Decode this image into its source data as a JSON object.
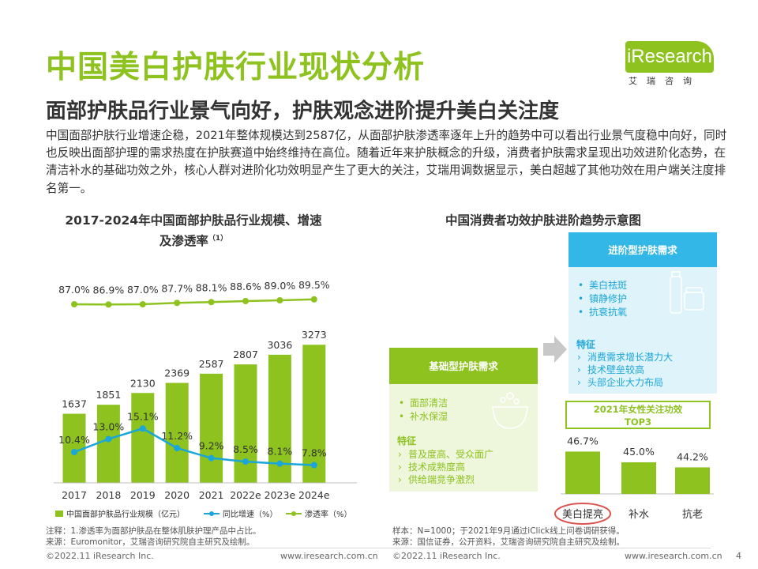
{
  "header": {
    "title": "中国美白护肤行业现状分析",
    "subtitle": "面部护肤品行业景气向好，护肤观念进阶提升美白关注度",
    "description": "中国面部护肤行业增速企稳，2021年整体规模达到2587亿，从面部护肤渗透率逐年上升的趋势中可以看出行业景气度稳中向好，同时也反映出面部护理的需求热度在护肤赛道中始终维持在高位。随着近年来护肤概念的升级，消费者护肤需求呈现出功效进阶化态势，在清洁补水的基础功效之外，核心人群对进阶化功效明显产生了更大的关注，艾瑞用调数据显示，美白超越了其他功效在用户端关注度排名第一。"
  },
  "logo": {
    "text": "iResearch",
    "cn": "艾瑞咨询",
    "color": "#8dc21f"
  },
  "colors": {
    "accent": "#8dc21f",
    "line_blue": "#1aa6d9",
    "box_blue": "#33b7e6",
    "light_blue": "#dff3fb",
    "light_green": "#eef6dc",
    "highlight_red": "#d9534f"
  },
  "chart_data": [
    {
      "type": "bar",
      "title": "2017-2024年中国面部护肤品行业规模、增速",
      "title_line2": "及渗透率",
      "title_sup": "（1）",
      "categories": [
        "2017",
        "2018",
        "2019",
        "2020",
        "2021",
        "2022e",
        "2023e",
        "2024e"
      ],
      "series": [
        {
          "name": "中国面部护肤品行业规模（亿元）",
          "kind": "bar",
          "values": [
            1637,
            1851,
            2130,
            2369,
            2587,
            2807,
            3036,
            3273
          ],
          "labels": [
            "1637",
            "1851",
            "2130",
            "2369",
            "2587",
            "2807",
            "3036",
            "3273"
          ]
        },
        {
          "name": "同比增速（%）",
          "kind": "line",
          "values": [
            10.4,
            13.0,
            15.1,
            11.2,
            9.2,
            8.5,
            8.1,
            7.8
          ],
          "labels": [
            "10.4%",
            "13.0%",
            "15.1%",
            "11.2%",
            "9.2%",
            "8.5%",
            "8.1%",
            "7.8%"
          ]
        },
        {
          "name": "渗透率（%）",
          "kind": "line",
          "values": [
            87.0,
            86.9,
            87.0,
            87.7,
            88.1,
            88.6,
            89.0,
            89.5
          ],
          "labels": [
            "87.0%",
            "86.9%",
            "87.0%",
            "87.7%",
            "88.1%",
            "88.6%",
            "89.0%",
            "89.5%"
          ]
        }
      ],
      "legend_position": "bottom",
      "grid": false
    },
    {
      "type": "bar",
      "title": "2021年女性关注功效",
      "title_line2": "TOP3",
      "categories": [
        "美白提亮",
        "补水",
        "抗老"
      ],
      "values": [
        46.7,
        45.0,
        44.2
      ],
      "labels": [
        "46.7%",
        "45.0%",
        "44.2%"
      ],
      "highlight": "美白提亮",
      "grid": false
    }
  ],
  "diagram": {
    "title": "中国消费者功效护肤进阶趋势示意图",
    "basic": {
      "title": "基础型护肤需求",
      "items": [
        "面部清洁",
        "补水保湿"
      ],
      "feature_title": "特征",
      "features": [
        "普及度高、受众面广",
        "技术成熟度高",
        "供给端竞争激烈"
      ]
    },
    "advanced": {
      "title": "进阶型护肤需求",
      "items": [
        "美白祛斑",
        "镇静修护",
        "抗衰抗氧"
      ],
      "feature_title": "特征",
      "features": [
        "消费需求增长潜力大",
        "技术壁垒较高",
        "头部企业大力布局"
      ]
    },
    "bullet_icon": "bullet-dot",
    "feature_icon": "chevron-right-icon",
    "arrow_icon": "arrow-right-icon",
    "product_icon": "cream-bottle-icon",
    "basin_icon": "wash-basin-icon"
  },
  "notes": {
    "left_line1": "注释：1.渗透率为面部护肤品在整体肌肤护理产品中占比。",
    "left_line2": "来源：Euromonitor，艾瑞咨询研究院自主研究及绘制。",
    "right_line1": "样本：N=1000；于2021年9月通过iClick线上问卷调研获得。",
    "right_line2": "来源：国信证券，公开资料，艾瑞咨询研究院自主研究及绘制。"
  },
  "footer": {
    "left_copyright": "©2022.11 iResearch Inc.",
    "left_url": "www.iresearch.com.cn",
    "right_copyright": "©2022.11 iResearch Inc.",
    "right_url": "www.iresearch.com.cn",
    "page_number": "4"
  }
}
